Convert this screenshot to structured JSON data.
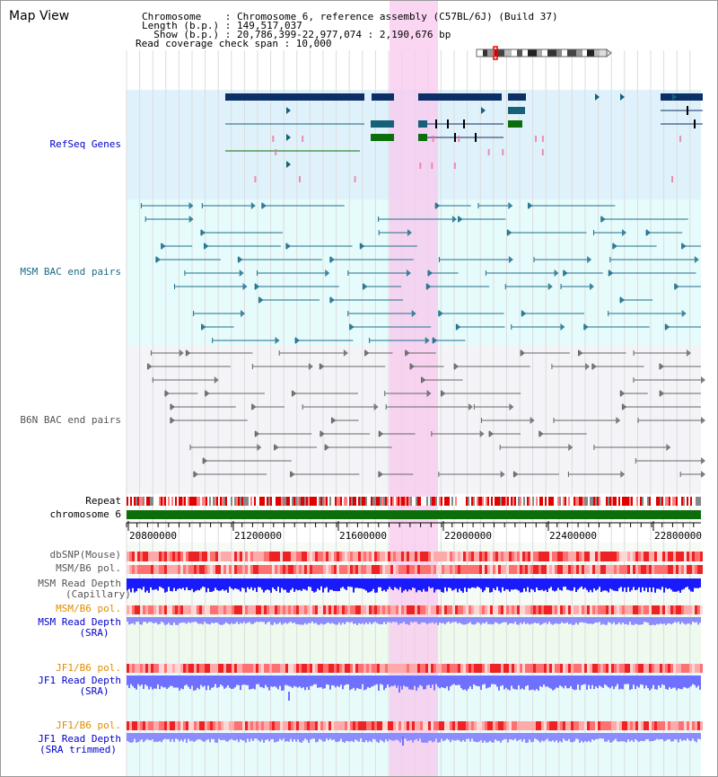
{
  "map_title": "Map View",
  "info": {
    "chromosome_line": "Chromosome    : Chromosome 6, reference assembly (C57BL/6J) (Build 37)",
    "length_line": "Length (b.p.) : 149,517,037",
    "show_line": "  Show (b.p.) : 20,786,399-22,977,074 : 2,190,676 bp",
    "coverage_line": "Read coverage check span : 10,000"
  },
  "tracks": {
    "refseq": "RefSeq Genes",
    "msm_bac": "MSM BAC end pairs",
    "b6n_bac": "B6N BAC end pairs",
    "repeat": "Repeat",
    "chromosome": "chromosome 6",
    "dbsnp": "dbSNP(Mouse)",
    "msm_b6_pol_1": "MSM/B6 pol.",
    "msm_read_depth_cap_1": "MSM Read Depth",
    "msm_read_depth_cap_2": "(Capillary)",
    "msm_b6_pol_2": "MSM/B6 pol.",
    "msm_read_depth_sra_1": "MSM Read Depth",
    "msm_read_depth_sra_2": "(SRA)",
    "jf1_b6_pol_1": "JF1/B6 pol.",
    "jf1_read_depth_sra_1": "JF1 Read Depth",
    "jf1_read_depth_sra_2": "(SRA)",
    "jf1_b6_pol_2": "JF1/B6 pol.",
    "jf1_read_depth_trim_1": "JF1 Read Depth",
    "jf1_read_depth_trim_2": "(SRA trimmed)"
  },
  "axis": {
    "ticks": [
      "20800000",
      "21200000",
      "21600000",
      "22000000",
      "22400000",
      "22800000"
    ]
  },
  "colors": {
    "refseq_bg": "#dff2fb",
    "msm_bg": "#e6fbfb",
    "b6n_bg": "#f4f4f8",
    "highlight": "#f8c8ee",
    "gene_dark": "#0b2f66",
    "gene_teal": "#16607a",
    "gene_green": "#0b6e0b",
    "chromosome_bar": "#0b6e0b",
    "msm_pair": "#1f6e8c",
    "b6n_pair": "#666666",
    "capillary_depth": "#1a1aff",
    "sra_depth": "#8c8cff",
    "jf1_depth": "#7070ff",
    "polymorphism": "#ee3333",
    "label_blue": "#0000cc",
    "label_teal": "#1a6b85",
    "label_gray": "#555555",
    "label_orange": "#e08c00"
  }
}
